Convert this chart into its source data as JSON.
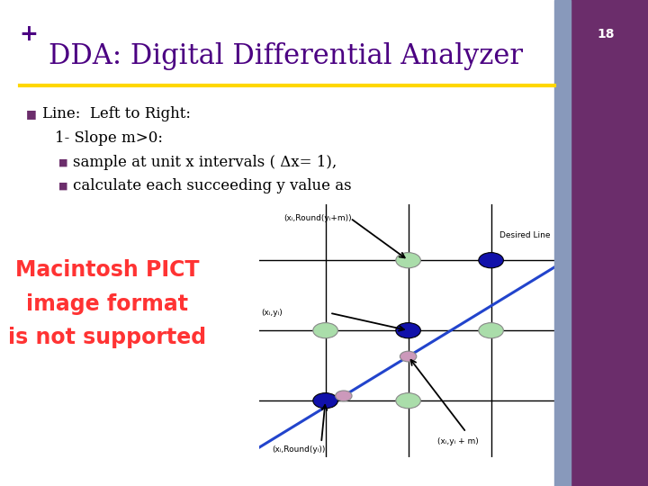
{
  "title": "DDA: Digital Differential Analyzer",
  "plus_symbol": "+",
  "slide_number": "18",
  "bg_color": "#ffffff",
  "title_color": "#4B0082",
  "title_font_size": 22,
  "yellow_line_color": "#FFD700",
  "purple_bar_color": "#6B2D6B",
  "gray_bar_color": "#8899BB",
  "bullet_color": "#6B2D6B",
  "bullet_text_color": "#000000",
  "line1": "Line:  Left to Right:",
  "line2": "1- Slope m>0:",
  "line3": "sample at unit x intervals ( Δx= 1),",
  "line4": "calculate each succeeding y value as",
  "red_text_line1": "Macintosh PICT",
  "red_text_line2": "image format",
  "red_text_line3": "is not supported",
  "red_text_color": "#FF3333",
  "diagram_label1": "(xᵢ,Round(yᵢ+m))",
  "diagram_label2": "Desired Line",
  "diagram_label3": "(xᵢ,yᵢ)",
  "diagram_label4": "(xᵢ,Round(yᵢ))",
  "diagram_label5": "(xᵢ,yᵢ + m)",
  "grid_color": "#000000",
  "blue_line_color": "#2244CC",
  "dark_ellipse_color": "#1111AA",
  "light_ellipse_color": "#AADDAA",
  "pink_ellipse_color": "#CC99BB"
}
